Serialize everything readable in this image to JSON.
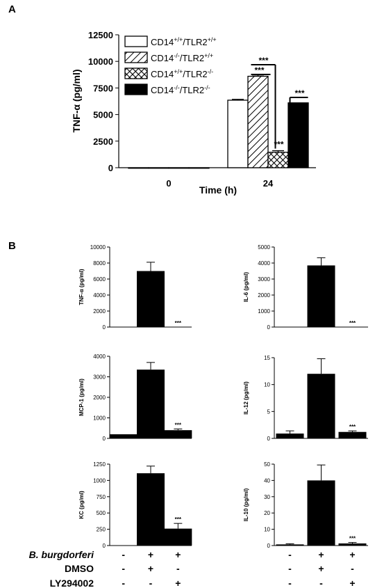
{
  "panel_labels": {
    "a": "A",
    "b": "B"
  },
  "chart_data": [
    {
      "type": "bar",
      "ylabel": "TNF-α (pg/ml)",
      "xlabel": "Time (h)",
      "categories": [
        "0",
        "24"
      ],
      "ylim": [
        0,
        12500
      ],
      "yticks": [
        "0",
        "2500",
        "5000",
        "7500",
        "10000",
        "12500"
      ],
      "series": [
        {
          "name": "CD14+/+/TLR2+/+",
          "legend_base": "CD14",
          "legend_sup1": "+/+",
          "legend_mid": "/TLR2",
          "legend_sup2": "+/+",
          "fill": "white",
          "values": [
            0,
            6350
          ],
          "errors": [
            0,
            80
          ]
        },
        {
          "name": "CD14-/-/TLR2+/+",
          "legend_base": "CD14",
          "legend_sup1": "-/-",
          "legend_mid": "/TLR2",
          "legend_sup2": "+/+",
          "fill": "hatch",
          "values": [
            0,
            8600
          ],
          "errors": [
            0,
            120
          ]
        },
        {
          "name": "CD14+/+/TLR2-/-",
          "legend_base": "CD14",
          "legend_sup1": "+/+",
          "legend_mid": "/TLR2",
          "legend_sup2": "-/-",
          "fill": "crosshatch",
          "values": [
            0,
            1450
          ],
          "errors": [
            0,
            150
          ]
        },
        {
          "name": "CD14-/-/TLR2-/-",
          "legend_base": "CD14",
          "legend_sup1": "-/-",
          "legend_mid": "/TLR2",
          "legend_sup2": "-/-",
          "fill": "black",
          "values": [
            0,
            6100
          ],
          "errors": [
            0,
            0
          ]
        }
      ],
      "annotations": [
        "***",
        "***",
        "***",
        "***"
      ]
    },
    {
      "type": "bar",
      "ylabel": "TNF-α (pg/ml)",
      "ylim": [
        0,
        10000
      ],
      "yticks": [
        "0",
        "2000",
        "4000",
        "6000",
        "8000",
        "10000"
      ],
      "values": [
        0,
        7000,
        0
      ],
      "errors": [
        0,
        1100,
        0
      ],
      "annotations": [
        "",
        "",
        "***"
      ]
    },
    {
      "type": "bar",
      "ylabel": "IL-6 (pg/ml)",
      "ylim": [
        0,
        5000
      ],
      "yticks": [
        "0",
        "1000",
        "2000",
        "3000",
        "4000",
        "5000"
      ],
      "values": [
        0,
        3850,
        0
      ],
      "errors": [
        0,
        480,
        0
      ],
      "annotations": [
        "",
        "",
        "***"
      ]
    },
    {
      "type": "bar",
      "ylabel": "MCP-1 (pg/ml)",
      "ylim": [
        0,
        4000
      ],
      "yticks": [
        "0",
        "1000",
        "2000",
        "3000",
        "4000"
      ],
      "values": [
        200,
        3350,
        400
      ],
      "errors": [
        0,
        350,
        60
      ],
      "annotations": [
        "",
        "",
        "***"
      ]
    },
    {
      "type": "bar",
      "ylabel": "IL-12 (pg/ml)",
      "ylim": [
        0,
        15
      ],
      "yticks": [
        "0",
        "5",
        "10",
        "15"
      ],
      "values": [
        0.9,
        12,
        1.2
      ],
      "errors": [
        0.5,
        2.8,
        0.2
      ],
      "annotations": [
        "",
        "",
        "***"
      ]
    },
    {
      "type": "bar",
      "ylabel": "KC (pg/ml)",
      "ylim": [
        0,
        1250
      ],
      "yticks": [
        "0",
        "250",
        "500",
        "750",
        "1000",
        "1250"
      ],
      "values": [
        0,
        1110,
        260
      ],
      "errors": [
        0,
        110,
        80
      ],
      "annotations": [
        "",
        "",
        "***"
      ]
    },
    {
      "type": "bar",
      "ylabel": "IL-10 (pg/ml)",
      "ylim": [
        0,
        50
      ],
      "yticks": [
        "0",
        "10",
        "20",
        "30",
        "40",
        "50"
      ],
      "values": [
        0.7,
        40,
        1.3
      ],
      "errors": [
        0.4,
        9.5,
        0.6
      ],
      "annotations": [
        "",
        "",
        "***"
      ]
    }
  ],
  "conditions": {
    "rows": [
      {
        "label": "B. burgdorferi",
        "marks": [
          "-",
          "+",
          "+"
        ]
      },
      {
        "label": "DMSO",
        "marks": [
          "-",
          "+",
          "-"
        ]
      },
      {
        "label": "LY294002",
        "marks": [
          "-",
          "-",
          "+"
        ]
      }
    ]
  }
}
